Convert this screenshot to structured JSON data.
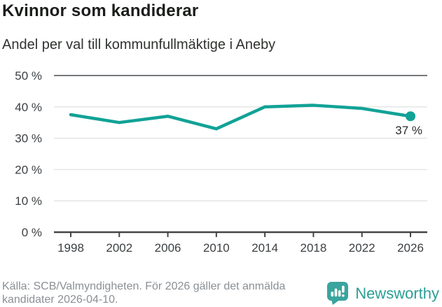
{
  "header": {
    "title": "Kvinnor som kandiderar",
    "subtitle": "Andel per val till kommunfullmäktige i Aneby"
  },
  "chart_data": {
    "type": "line",
    "title": "Kvinnor som kandiderar",
    "subtitle": "Andel per val till kommunfullmäktige i Aneby",
    "x": [
      "1998",
      "2002",
      "2006",
      "2010",
      "2014",
      "2018",
      "2022",
      "2026"
    ],
    "values": [
      37.5,
      35,
      37,
      33,
      40,
      40.5,
      39.5,
      37
    ],
    "ylim": [
      0,
      50
    ],
    "ytick_values": [
      0,
      10,
      20,
      30,
      40,
      50
    ],
    "ytick_labels": [
      "0 %",
      "10 %",
      "20 %",
      "30 %",
      "40 %",
      "50 %"
    ],
    "grid": true,
    "legend": "none",
    "end_point_label": "37 %",
    "line_color": "#12a296"
  },
  "footer": {
    "source_text": "Källa: SCB/Valmyndigheten. För 2026 gäller det anmälda kandidater 2026-04-10.",
    "logo_text": "Newsworthy",
    "logo_color": "#2b9e96",
    "logo_bubble_color": "#3aa49e"
  }
}
